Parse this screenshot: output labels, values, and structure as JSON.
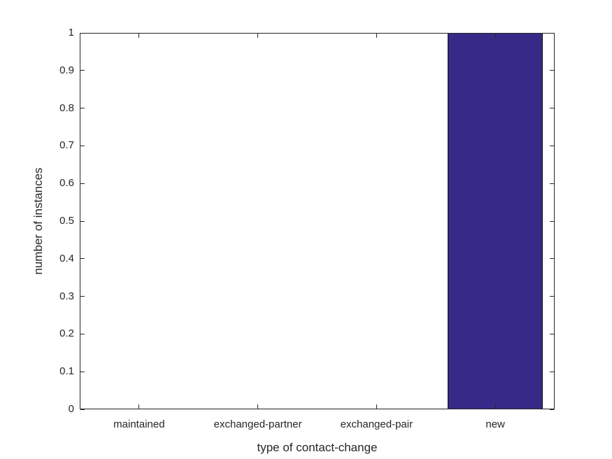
{
  "chart_data": {
    "type": "bar",
    "title": "",
    "xlabel": "type of contact-change",
    "ylabel": "number of instances",
    "categories": [
      "maintained",
      "exchanged-partner",
      "exchanged-pair",
      "new"
    ],
    "values": [
      0,
      0,
      0,
      1
    ],
    "ylim": [
      0,
      1
    ],
    "yticks": [
      0,
      0.1,
      0.2,
      0.3,
      0.4,
      0.5,
      0.6,
      0.7,
      0.8,
      0.9,
      1
    ],
    "yticklabels": [
      "0",
      "0.1",
      "0.2",
      "0.3",
      "0.4",
      "0.5",
      "0.6",
      "0.7",
      "0.8",
      "0.9",
      "1"
    ],
    "bar_width_fraction": 0.8,
    "grid": false,
    "legend_position": "none",
    "colors": {
      "bar_fill": "#352a87",
      "bar_edge": "#0d0d0d",
      "axis": "#262626",
      "text": "#262626",
      "background": "#ffffff"
    }
  }
}
